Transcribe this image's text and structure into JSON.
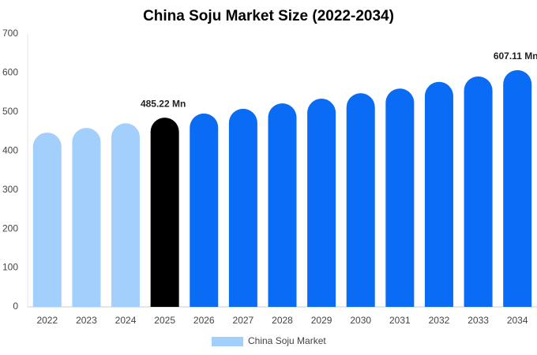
{
  "chart_data": {
    "type": "bar",
    "title": "China Soju Market Size (2022-2034)",
    "categories": [
      "2022",
      "2023",
      "2024",
      "2025",
      "2026",
      "2027",
      "2028",
      "2029",
      "2030",
      "2031",
      "2032",
      "2033",
      "2034"
    ],
    "series": [
      {
        "name": "China Soju Market",
        "color": "#a3cffd",
        "colors": [
          "#a3cffd",
          "#a3cffd",
          "#a3cffd",
          "#000000",
          "#0a6cf5",
          "#0a6cf5",
          "#0a6cf5",
          "#0a6cf5",
          "#0a6cf5",
          "#0a6cf5",
          "#0a6cf5",
          "#0a6cf5",
          "#0a6cf5"
        ],
        "values": [
          447,
          459,
          471,
          485.22,
          496,
          508,
          522,
          534,
          548,
          560,
          577,
          591,
          607.11
        ],
        "value_labels": [
          null,
          null,
          null,
          "485.22 Mn",
          null,
          null,
          null,
          null,
          null,
          null,
          null,
          null,
          "607.11 Mn"
        ]
      }
    ],
    "ylim": [
      0,
      700
    ],
    "yticks": [
      0,
      100,
      200,
      300,
      400,
      500,
      600,
      700
    ],
    "grid": false,
    "legend": "bottom"
  }
}
